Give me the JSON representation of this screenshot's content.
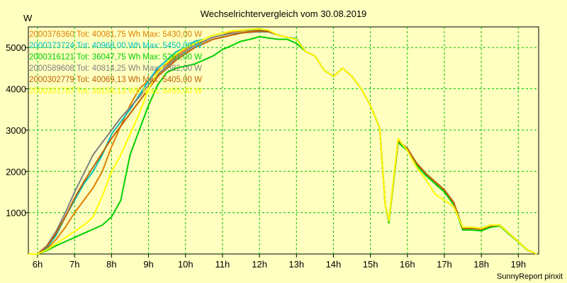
{
  "chart_data": {
    "type": "line",
    "title": "Wechselrichtervergleich vom 30.08.2019",
    "ylabel": "W",
    "xlabel": "",
    "xlim": [
      5.75,
      19.55
    ],
    "ylim": [
      0,
      5500
    ],
    "grid": true,
    "x_ticks": [
      6,
      7,
      8,
      9,
      10,
      11,
      12,
      13,
      14,
      15,
      16,
      17,
      18,
      19
    ],
    "x_tick_labels": [
      "6h",
      "7h",
      "8h",
      "9h",
      "10h",
      "11h",
      "12h",
      "13h",
      "14h",
      "15h",
      "16h",
      "17h",
      "18h",
      "19h"
    ],
    "y_ticks": [
      1000,
      2000,
      3000,
      4000,
      5000
    ],
    "y_tick_labels": [
      "1000",
      "2000",
      "3000",
      "4000",
      "5000"
    ],
    "x": [
      5.75,
      6.0,
      6.25,
      6.5,
      6.75,
      7.0,
      7.25,
      7.5,
      7.75,
      8.0,
      8.25,
      8.5,
      8.75,
      9.0,
      9.25,
      9.5,
      9.75,
      10.0,
      10.25,
      10.5,
      10.75,
      11.0,
      11.25,
      11.5,
      11.75,
      12.0,
      12.25,
      12.5,
      12.75,
      13.0,
      13.25,
      13.5,
      13.75,
      14.0,
      14.25,
      14.5,
      14.75,
      15.0,
      15.25,
      15.4,
      15.5,
      15.75,
      16.0,
      16.25,
      16.5,
      16.75,
      17.0,
      17.25,
      17.5,
      17.75,
      18.0,
      18.25,
      18.5,
      18.75,
      19.0,
      19.25,
      19.5
    ],
    "series": [
      {
        "name": "2000376360",
        "label": "2000376360 Tot: 40081,75 Wh Max: 5430,00 W",
        "color": "#e08000",
        "values": [
          0,
          0,
          120,
          350,
          650,
          1000,
          1300,
          1600,
          2000,
          2600,
          3100,
          3600,
          4000,
          4200,
          4450,
          4600,
          4800,
          4950,
          5100,
          5150,
          5250,
          5300,
          5380,
          5400,
          5410,
          5420,
          5400,
          5300,
          5250,
          5200,
          4900,
          4800,
          4450,
          4300,
          4500,
          4300,
          4000,
          3600,
          3050,
          1200,
          800,
          2750,
          2550,
          2200,
          1950,
          1750,
          1550,
          1250,
          620,
          620,
          600,
          680,
          700,
          500,
          300,
          100,
          0
        ]
      },
      {
        "name": "2000373724",
        "label": "2000373724 Tot: 40968,00 Wh Max: 5450,00 W",
        "color": "#00c0c0",
        "values": [
          0,
          0,
          150,
          450,
          900,
          1300,
          1700,
          2000,
          2400,
          2900,
          3200,
          3500,
          3850,
          4200,
          4500,
          4700,
          4900,
          5000,
          5150,
          5200,
          5300,
          5350,
          5400,
          5420,
          5430,
          5450,
          5400,
          5300,
          5250,
          5220,
          4900,
          4800,
          4450,
          4300,
          4500,
          4300,
          4000,
          3600,
          3050,
          1200,
          800,
          2750,
          2550,
          2200,
          1950,
          1750,
          1550,
          1250,
          620,
          620,
          600,
          680,
          700,
          500,
          300,
          100,
          0
        ]
      },
      {
        "name": "2000316121",
        "label": "2000316121 Tot: 36047,75 Wh Max: 5261,00 W",
        "color": "#00d000",
        "values": [
          0,
          0,
          80,
          200,
          300,
          400,
          500,
          600,
          700,
          900,
          1300,
          2400,
          3000,
          3600,
          4100,
          4400,
          4500,
          4550,
          4600,
          4700,
          4800,
          4950,
          5050,
          5150,
          5200,
          5261,
          5230,
          5200,
          5200,
          5100,
          4900,
          4800,
          4450,
          4300,
          4500,
          4300,
          4000,
          3600,
          3050,
          1200,
          750,
          2700,
          2500,
          2150,
          1900,
          1700,
          1500,
          1200,
          580,
          580,
          560,
          650,
          680,
          480,
          290,
          90,
          0
        ]
      },
      {
        "name": "2000589608",
        "label": "2000589608 Tot: 40814,25 Wh Max: 5382,00 W",
        "color": "#808080",
        "values": [
          0,
          0,
          200,
          550,
          1000,
          1500,
          1950,
          2400,
          2700,
          3000,
          3300,
          3550,
          3800,
          4100,
          4350,
          4550,
          4750,
          4900,
          5050,
          5150,
          5250,
          5300,
          5340,
          5360,
          5370,
          5382,
          5380,
          5300,
          5250,
          5200,
          4900,
          4800,
          4450,
          4300,
          4500,
          4300,
          4000,
          3600,
          3050,
          1200,
          800,
          2750,
          2550,
          2200,
          1950,
          1750,
          1550,
          1250,
          620,
          620,
          600,
          680,
          700,
          500,
          300,
          100,
          0
        ]
      },
      {
        "name": "2000302779",
        "label": "2000302779 Tot: 40069,13 Wh Max: 5405,00 W",
        "color": "#c06000",
        "values": [
          0,
          0,
          180,
          500,
          900,
          1350,
          1750,
          2100,
          2450,
          2800,
          3100,
          3400,
          3700,
          4000,
          4300,
          4500,
          4700,
          4850,
          5000,
          5100,
          5200,
          5250,
          5300,
          5350,
          5380,
          5405,
          5390,
          5300,
          5250,
          5200,
          4900,
          4800,
          4450,
          4300,
          4500,
          4300,
          4000,
          3600,
          3050,
          1200,
          800,
          2750,
          2550,
          2200,
          1950,
          1750,
          1550,
          1250,
          620,
          620,
          600,
          680,
          700,
          500,
          300,
          100,
          0
        ]
      },
      {
        "name": "2000301787",
        "label": "2000301787 Tot: 39158,13 Wh Max: 5455,00 W",
        "color": "#ffff00",
        "values": [
          0,
          0,
          100,
          250,
          400,
          550,
          700,
          900,
          1400,
          2000,
          2400,
          2900,
          3400,
          4000,
          4400,
          4650,
          4850,
          5000,
          5100,
          5200,
          5300,
          5350,
          5400,
          5420,
          5440,
          5455,
          5420,
          5300,
          5250,
          5200,
          4900,
          4800,
          4450,
          4300,
          4500,
          4300,
          4000,
          3600,
          3050,
          1200,
          800,
          2800,
          2500,
          2100,
          1800,
          1450,
          1300,
          1150,
          650,
          650,
          620,
          700,
          700,
          500,
          300,
          100,
          0
        ]
      }
    ]
  },
  "footer": "SunnyReport pinxit"
}
